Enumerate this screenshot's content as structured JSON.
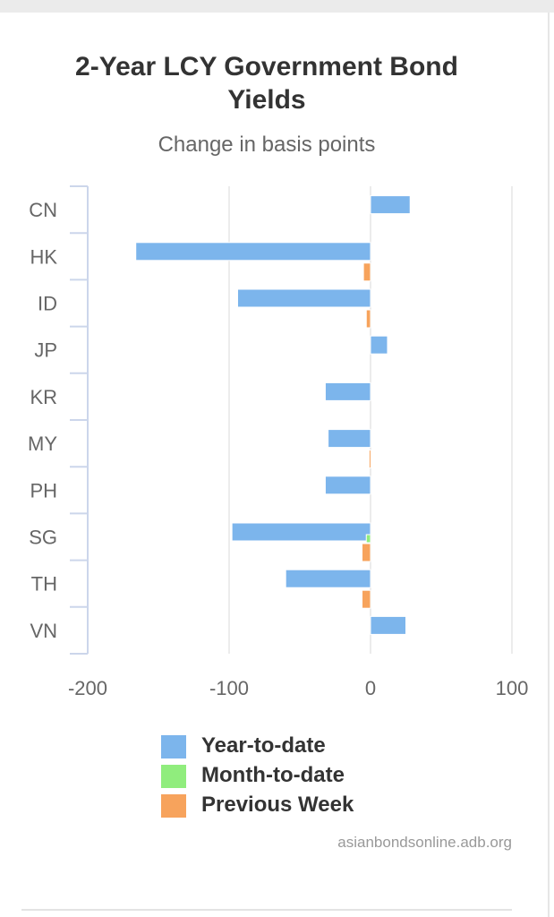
{
  "chart_data": {
    "type": "bar",
    "orientation": "horizontal",
    "title": "2-Year LCY Government Bond Yields",
    "subtitle": "Change in basis points",
    "categories": [
      "CN",
      "HK",
      "ID",
      "JP",
      "KR",
      "MY",
      "PH",
      "SG",
      "TH",
      "VN"
    ],
    "series": [
      {
        "name": "Year-to-date",
        "color": "#7cb5ec",
        "values": [
          28,
          -166,
          -94,
          12,
          -32,
          -30,
          -32,
          -98,
          -60,
          25
        ]
      },
      {
        "name": "Month-to-date",
        "color": "#90ed7d",
        "values": [
          0,
          0,
          0,
          0,
          0,
          0,
          0,
          -3,
          0,
          0
        ]
      },
      {
        "name": "Previous Week",
        "color": "#f7a35c",
        "values": [
          0,
          -5,
          -3,
          0,
          0,
          -1,
          0,
          -6,
          -6,
          0
        ]
      }
    ],
    "xlim": [
      -200,
      100
    ],
    "xticks": [
      -200,
      -100,
      0,
      100
    ],
    "grid": true,
    "legend_position": "bottom-center"
  },
  "credit": "asianbondsonline.adb.org"
}
